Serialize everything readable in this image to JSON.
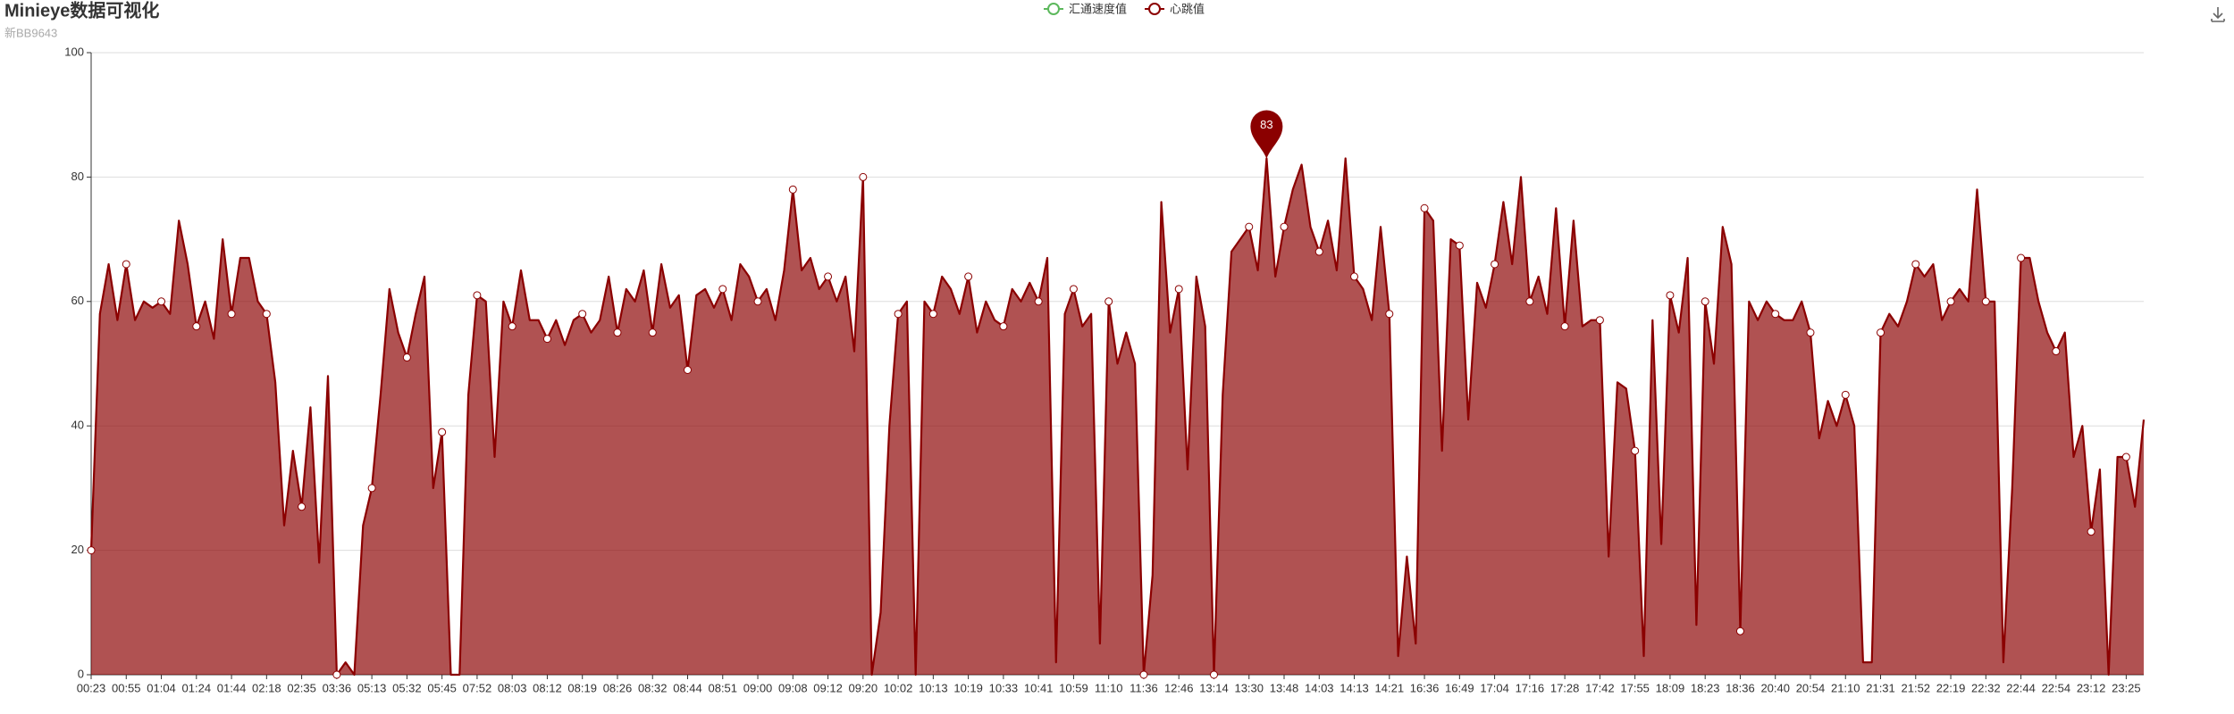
{
  "chart_data": {
    "type": "area",
    "title": "Minieye数据可视化",
    "subtitle": "新BB9643",
    "mark_point": "max",
    "grid": true,
    "ylim": [
      0,
      100
    ],
    "yticks": [
      0,
      20,
      40,
      60,
      80,
      100
    ],
    "categories": [
      "00:23",
      null,
      null,
      null,
      "00:55",
      null,
      null,
      null,
      "01:04",
      null,
      null,
      null,
      "01:24",
      null,
      null,
      null,
      "01:44",
      null,
      null,
      null,
      "02:18",
      null,
      null,
      null,
      "02:35",
      null,
      null,
      null,
      "03:36",
      null,
      null,
      null,
      "05:13",
      null,
      null,
      null,
      "05:32",
      null,
      null,
      null,
      "05:45",
      null,
      null,
      null,
      "07:52",
      null,
      null,
      null,
      "08:03",
      null,
      null,
      null,
      "08:12",
      null,
      null,
      null,
      "08:19",
      null,
      null,
      null,
      "08:26",
      null,
      null,
      null,
      "08:32",
      null,
      null,
      null,
      "08:44",
      null,
      null,
      null,
      "08:51",
      null,
      null,
      null,
      "09:00",
      null,
      null,
      null,
      "09:08",
      null,
      null,
      null,
      "09:12",
      null,
      null,
      null,
      "09:20",
      null,
      null,
      null,
      "10:02",
      null,
      null,
      null,
      "10:13",
      null,
      null,
      null,
      "10:19",
      null,
      null,
      null,
      "10:33",
      null,
      null,
      null,
      "10:41",
      null,
      null,
      null,
      "10:59",
      null,
      null,
      null,
      "11:10",
      null,
      null,
      null,
      "11:36",
      null,
      null,
      null,
      "12:46",
      null,
      null,
      null,
      "13:14",
      null,
      null,
      null,
      "13:30",
      null,
      null,
      null,
      "13:48",
      null,
      null,
      null,
      "14:03",
      null,
      null,
      null,
      "14:13",
      null,
      null,
      null,
      "14:21",
      null,
      null,
      null,
      "16:36",
      null,
      null,
      null,
      "16:49",
      null,
      null,
      null,
      "17:04",
      null,
      null,
      null,
      "17:16",
      null,
      null,
      null,
      "17:28",
      null,
      null,
      null,
      "17:42",
      null,
      null,
      null,
      "17:55",
      null,
      null,
      null,
      "18:09",
      null,
      null,
      null,
      "18:23",
      null,
      null,
      null,
      "18:36",
      null,
      null,
      null,
      "20:40",
      null,
      null,
      null,
      "20:54",
      null,
      null,
      null,
      "21:10",
      null,
      null,
      null,
      "21:31",
      null,
      null,
      null,
      "21:52",
      null,
      null,
      null,
      "22:19",
      null,
      null,
      null,
      "22:32",
      null,
      null,
      null,
      "22:44",
      null,
      null,
      null,
      "22:54",
      null,
      null,
      null,
      "23:12",
      null,
      null,
      null,
      "23:25",
      null,
      null
    ],
    "series": [
      {
        "name": "汇通速度值",
        "color": "#5cb85c"
      },
      {
        "name": "心跳值",
        "color": "#8b0000",
        "values": [
          20,
          58,
          66,
          57,
          66,
          57,
          60,
          59,
          60,
          58,
          73,
          66,
          56,
          60,
          54,
          70,
          58,
          67,
          67,
          60,
          58,
          47,
          24,
          36,
          27,
          43,
          18,
          48,
          0,
          2,
          0,
          24,
          30,
          45,
          62,
          55,
          51,
          58,
          64,
          30,
          39,
          0,
          0,
          45,
          61,
          60,
          35,
          60,
          56,
          65,
          57,
          57,
          54,
          57,
          53,
          57,
          58,
          55,
          57,
          64,
          55,
          62,
          60,
          65,
          55,
          66,
          59,
          61,
          49,
          61,
          62,
          59,
          62,
          57,
          66,
          64,
          60,
          62,
          57,
          65,
          78,
          65,
          67,
          62,
          64,
          60,
          64,
          52,
          80,
          0,
          10,
          40,
          58,
          60,
          0,
          60,
          58,
          64,
          62,
          58,
          64,
          55,
          60,
          57,
          56,
          62,
          60,
          63,
          60,
          67,
          2,
          58,
          62,
          56,
          58,
          5,
          60,
          50,
          55,
          50,
          0,
          16,
          76,
          55,
          62,
          33,
          64,
          56,
          0,
          45,
          68,
          70,
          72,
          65,
          83,
          64,
          72,
          78,
          82,
          72,
          68,
          73,
          65,
          83,
          64,
          62,
          57,
          72,
          58,
          3,
          19,
          5,
          75,
          73,
          36,
          70,
          69,
          41,
          63,
          59,
          66,
          76,
          66,
          80,
          60,
          64,
          58,
          75,
          56,
          73,
          56,
          57,
          57,
          19,
          47,
          46,
          36,
          3,
          57,
          21,
          61,
          55,
          67,
          8,
          60,
          50,
          72,
          66,
          7,
          60,
          57,
          60,
          58,
          57,
          57,
          60,
          55,
          38,
          44,
          40,
          45,
          40,
          2,
          2,
          55,
          58,
          56,
          60,
          66,
          64,
          66,
          57,
          60,
          62,
          60,
          78,
          60,
          60,
          2,
          30,
          67,
          67,
          60,
          55,
          52,
          55,
          35,
          40,
          23,
          33,
          0,
          35,
          35,
          27,
          41
        ]
      }
    ]
  }
}
